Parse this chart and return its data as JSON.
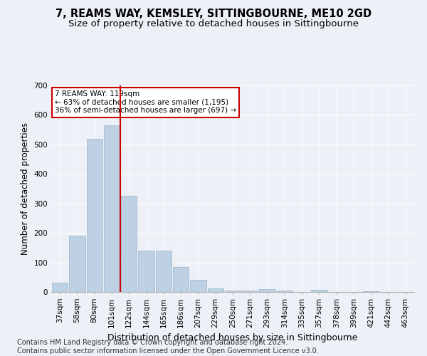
{
  "title": "7, REAMS WAY, KEMSLEY, SITTINGBOURNE, ME10 2GD",
  "subtitle": "Size of property relative to detached houses in Sittingbourne",
  "xlabel": "Distribution of detached houses by size in Sittingbourne",
  "ylabel": "Number of detached properties",
  "categories": [
    "37sqm",
    "58sqm",
    "80sqm",
    "101sqm",
    "122sqm",
    "144sqm",
    "165sqm",
    "186sqm",
    "207sqm",
    "229sqm",
    "250sqm",
    "271sqm",
    "293sqm",
    "314sqm",
    "335sqm",
    "357sqm",
    "378sqm",
    "399sqm",
    "421sqm",
    "442sqm",
    "463sqm"
  ],
  "values": [
    32,
    190,
    520,
    565,
    325,
    140,
    140,
    85,
    42,
    13,
    5,
    5,
    10,
    5,
    0,
    8,
    0,
    0,
    3,
    0,
    0
  ],
  "bar_color": "#bdd0e4",
  "bar_edgecolor": "#9ab4cc",
  "vline_color": "#cc0000",
  "annotation_text": "7 REAMS WAY: 119sqm\n← 63% of detached houses are smaller (1,195)\n36% of semi-detached houses are larger (697) →",
  "annotation_box_color": "#ffffff",
  "annotation_box_edgecolor": "#cc0000",
  "ylim": [
    0,
    700
  ],
  "yticks": [
    0,
    100,
    200,
    300,
    400,
    500,
    600,
    700
  ],
  "background_color": "#edf1f7",
  "plot_background": "#edf1f7",
  "grid_color": "#ffffff",
  "footer": "Contains HM Land Registry data © Crown copyright and database right 2024.\nContains public sector information licensed under the Open Government Licence v3.0.",
  "title_fontsize": 10.5,
  "subtitle_fontsize": 9.5,
  "xlabel_fontsize": 9,
  "ylabel_fontsize": 8.5,
  "tick_fontsize": 7.5,
  "footer_fontsize": 7,
  "vline_x_index": 3.5
}
